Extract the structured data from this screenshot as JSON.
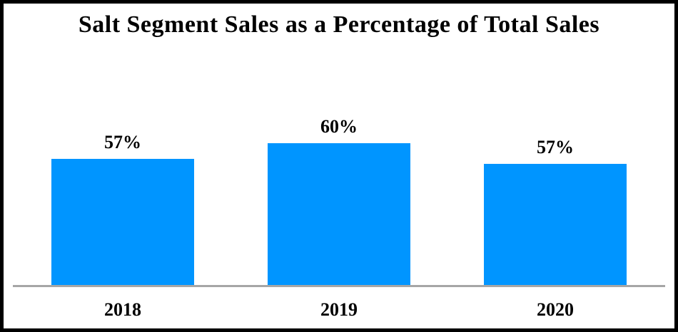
{
  "title": "Salt Segment Sales as a Percentage of Total Sales",
  "chart_data": {
    "type": "bar",
    "title": "Salt Segment Sales as a Percentage of Total Sales",
    "categories": [
      "2018",
      "2019",
      "2020"
    ],
    "values": [
      57,
      60,
      57
    ],
    "value_labels": [
      "57%",
      "60%",
      "57%"
    ],
    "series": [
      {
        "name": "Salt Segment Sales % of Total Sales",
        "values": [
          57,
          60,
          57
        ]
      }
    ],
    "xlabel": "",
    "ylabel": "",
    "unit": "%",
    "grid": false,
    "legend_position": "none",
    "bar_color": "#0095ff",
    "axis_line_color": "#a6a6a6",
    "text_color": "#000000",
    "background_color": "#ffffff",
    "frame_color": "#000000"
  }
}
